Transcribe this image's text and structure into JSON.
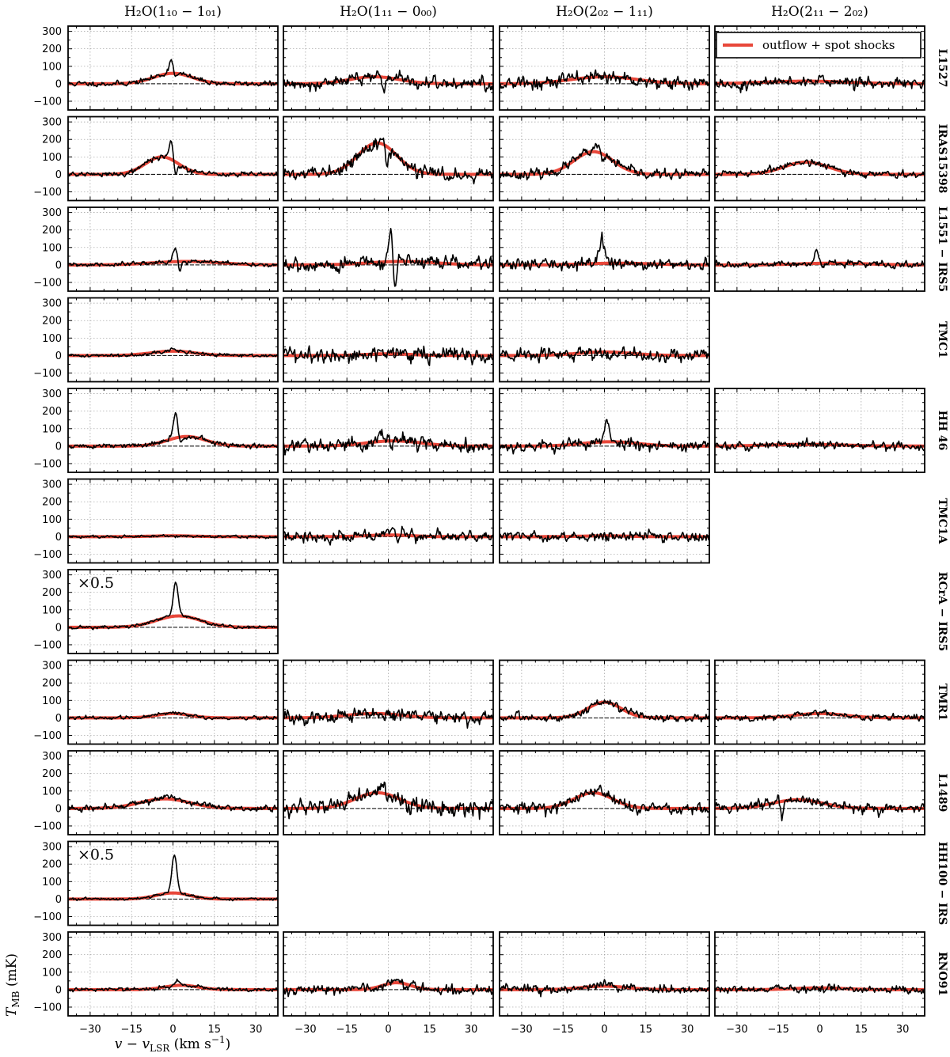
{
  "chart_data": {
    "type": "line",
    "panels_grid": {
      "rows": 11,
      "columns": 4
    },
    "columns": [
      {
        "title": "H₂O(1₁₀ − 1₀₁)"
      },
      {
        "title": "H₂O(1₁₁ − 0₀₀)"
      },
      {
        "title": "H₂O(2₀₂ − 1₁₁)"
      },
      {
        "title": "H₂O(2₁₁ − 2₀₂)"
      }
    ],
    "rows": [
      {
        "label": "L1527",
        "panels": [
          {
            "present": true,
            "fit_amp": 60,
            "fit_center": 0,
            "fit_width": 7,
            "peak_amp": 80,
            "peak_center": -0.5,
            "absorb_amp": -40,
            "noise": 12,
            "seed": 11
          },
          {
            "present": true,
            "fit_amp": 40,
            "fit_center": -5,
            "fit_width": 9,
            "peak_amp": 20,
            "peak_center": -3,
            "absorb_amp": -80,
            "noise": 28,
            "seed": 12
          },
          {
            "present": true,
            "fit_amp": 40,
            "fit_center": 0,
            "fit_width": 12,
            "peak_amp": 0,
            "peak_center": 0,
            "absorb_amp": 0,
            "noise": 32,
            "seed": 13
          },
          {
            "present": true,
            "fit_amp": 15,
            "fit_center": -5,
            "fit_width": 15,
            "peak_amp": 0,
            "peak_center": 0,
            "absorb_amp": 0,
            "noise": 26,
            "seed": 14
          }
        ]
      },
      {
        "label": "IRAS15398",
        "panels": [
          {
            "present": true,
            "fit_amp": 100,
            "fit_center": -4,
            "fit_width": 6,
            "peak_amp": 110,
            "peak_center": -0.5,
            "absorb_amp": -110,
            "noise": 12,
            "seed": 21
          },
          {
            "present": true,
            "fit_amp": 180,
            "fit_center": -4,
            "fit_width": 7,
            "peak_amp": 30,
            "peak_center": -2,
            "absorb_amp": -130,
            "noise": 28,
            "seed": 22
          },
          {
            "present": true,
            "fit_amp": 130,
            "fit_center": -4,
            "fit_width": 7,
            "peak_amp": 40,
            "peak_center": -2,
            "absorb_amp": -60,
            "noise": 22,
            "seed": 23
          },
          {
            "present": true,
            "fit_amp": 70,
            "fit_center": -5,
            "fit_width": 8,
            "peak_amp": 0,
            "peak_center": 0,
            "absorb_amp": 0,
            "noise": 16,
            "seed": 24
          }
        ]
      },
      {
        "label": "L1551 − IRS5",
        "panels": [
          {
            "present": true,
            "fit_amp": 20,
            "fit_center": 5,
            "fit_width": 12,
            "peak_amp": 90,
            "peak_center": 1,
            "absorb_amp": -80,
            "noise": 10,
            "seed": 31
          },
          {
            "present": true,
            "fit_amp": 20,
            "fit_center": 5,
            "fit_width": 12,
            "peak_amp": 170,
            "peak_center": 1,
            "absorb_amp": -190,
            "noise": 32,
            "seed": 32
          },
          {
            "present": true,
            "fit_amp": 10,
            "fit_center": 5,
            "fit_width": 12,
            "peak_amp": 140,
            "peak_center": -1,
            "absorb_amp": 0,
            "noise": 26,
            "seed": 33
          },
          {
            "present": true,
            "fit_amp": 10,
            "fit_center": 5,
            "fit_width": 12,
            "peak_amp": 70,
            "peak_center": -1,
            "absorb_amp": -30,
            "noise": 16,
            "seed": 34
          }
        ]
      },
      {
        "label": "TMC1",
        "panels": [
          {
            "present": true,
            "fit_amp": 25,
            "fit_center": 0,
            "fit_width": 8,
            "peak_amp": 10,
            "peak_center": 0,
            "absorb_amp": 0,
            "noise": 8,
            "seed": 41
          },
          {
            "present": true,
            "fit_amp": 10,
            "fit_center": 0,
            "fit_width": 8,
            "peak_amp": 0,
            "peak_center": 0,
            "absorb_amp": 0,
            "noise": 38,
            "seed": 42
          },
          {
            "present": true,
            "fit_amp": 20,
            "fit_center": 0,
            "fit_width": 10,
            "peak_amp": 0,
            "peak_center": 0,
            "absorb_amp": 0,
            "noise": 32,
            "seed": 43
          },
          {
            "present": false
          }
        ]
      },
      {
        "label": "HH 46",
        "panels": [
          {
            "present": true,
            "fit_amp": 55,
            "fit_center": 5,
            "fit_width": 7,
            "peak_amp": 140,
            "peak_center": 1,
            "absorb_amp": -50,
            "noise": 12,
            "seed": 51
          },
          {
            "present": true,
            "fit_amp": 30,
            "fit_center": 2,
            "fit_width": 10,
            "peak_amp": 40,
            "peak_center": -3,
            "absorb_amp": 0,
            "noise": 32,
            "seed": 52
          },
          {
            "present": true,
            "fit_amp": 25,
            "fit_center": 2,
            "fit_width": 10,
            "peak_amp": 100,
            "peak_center": 1,
            "absorb_amp": 0,
            "noise": 28,
            "seed": 53
          },
          {
            "present": true,
            "fit_amp": 10,
            "fit_center": -5,
            "fit_width": 14,
            "peak_amp": 0,
            "peak_center": 0,
            "absorb_amp": 0,
            "noise": 20,
            "seed": 54
          }
        ]
      },
      {
        "label": "TMC1A",
        "panels": [
          {
            "present": true,
            "fit_amp": 5,
            "fit_center": 0,
            "fit_width": 8,
            "peak_amp": 0,
            "peak_center": 0,
            "absorb_amp": 0,
            "noise": 7,
            "seed": 61
          },
          {
            "present": true,
            "fit_amp": 10,
            "fit_center": 0,
            "fit_width": 8,
            "peak_amp": 30,
            "peak_center": 2,
            "absorb_amp": -30,
            "noise": 24,
            "seed": 62
          },
          {
            "present": true,
            "fit_amp": 5,
            "fit_center": 0,
            "fit_width": 8,
            "peak_amp": 0,
            "peak_center": 0,
            "absorb_amp": 0,
            "noise": 22,
            "seed": 63
          },
          {
            "present": false
          }
        ]
      },
      {
        "label": "RCrA − IRS5",
        "panels": [
          {
            "present": true,
            "scale_label": "×0.5",
            "fit_amp": 65,
            "fit_center": 2,
            "fit_width": 8,
            "peak_amp": 190,
            "peak_center": 1,
            "absorb_amp": 0,
            "noise": 8,
            "seed": 71
          },
          {
            "present": false
          },
          {
            "present": false
          },
          {
            "present": false
          }
        ]
      },
      {
        "label": "TMR1",
        "panels": [
          {
            "present": true,
            "fit_amp": 25,
            "fit_center": 0,
            "fit_width": 6,
            "peak_amp": 10,
            "peak_center": 0,
            "absorb_amp": 0,
            "noise": 8,
            "seed": 81
          },
          {
            "present": true,
            "fit_amp": 25,
            "fit_center": -5,
            "fit_width": 10,
            "peak_amp": 0,
            "peak_center": 0,
            "absorb_amp": 0,
            "noise": 30,
            "seed": 82
          },
          {
            "present": true,
            "fit_amp": 90,
            "fit_center": 0,
            "fit_width": 6,
            "peak_amp": 0,
            "peak_center": 0,
            "absorb_amp": 0,
            "noise": 18,
            "seed": 83
          },
          {
            "present": true,
            "fit_amp": 25,
            "fit_center": 0,
            "fit_width": 9,
            "peak_amp": 0,
            "peak_center": 0,
            "absorb_amp": 0,
            "noise": 14,
            "seed": 84
          }
        ]
      },
      {
        "label": "L1489",
        "panels": [
          {
            "present": true,
            "fit_amp": 55,
            "fit_center": -3,
            "fit_width": 9,
            "peak_amp": 15,
            "peak_center": -3,
            "absorb_amp": 0,
            "noise": 14,
            "seed": 91
          },
          {
            "present": true,
            "fit_amp": 90,
            "fit_center": -4,
            "fit_width": 8,
            "peak_amp": 60,
            "peak_center": -2,
            "absorb_amp": -50,
            "noise": 38,
            "seed": 92
          },
          {
            "present": true,
            "fit_amp": 90,
            "fit_center": -4,
            "fit_width": 7,
            "peak_amp": 50,
            "peak_center": -2,
            "absorb_amp": 0,
            "noise": 28,
            "seed": 93
          },
          {
            "present": true,
            "fit_amp": 50,
            "fit_center": -8,
            "fit_width": 9,
            "peak_amp": 30,
            "peak_center": -15,
            "absorb_amp": -80,
            "noise": 22,
            "seed": 94
          }
        ]
      },
      {
        "label": "HH100 − IRS",
        "panels": [
          {
            "present": true,
            "scale_label": "×0.5",
            "fit_amp": 35,
            "fit_center": 0,
            "fit_width": 6,
            "peak_amp": 220,
            "peak_center": 0.5,
            "absorb_amp": 0,
            "noise": 6,
            "seed": 101
          },
          {
            "present": false
          },
          {
            "present": false
          },
          {
            "present": false
          }
        ]
      },
      {
        "label": "RNO91",
        "panels": [
          {
            "present": true,
            "fit_amp": 25,
            "fit_center": 3,
            "fit_width": 6,
            "peak_amp": 25,
            "peak_center": 2,
            "absorb_amp": 0,
            "noise": 9,
            "seed": 111
          },
          {
            "present": true,
            "fit_amp": 40,
            "fit_center": 3,
            "fit_width": 5,
            "peak_amp": 30,
            "peak_center": 3,
            "absorb_amp": 0,
            "noise": 24,
            "seed": 112
          },
          {
            "present": true,
            "fit_amp": 20,
            "fit_center": 0,
            "fit_width": 8,
            "peak_amp": 30,
            "peak_center": 0,
            "absorb_amp": 0,
            "noise": 20,
            "seed": 113
          },
          {
            "present": true,
            "fit_amp": 10,
            "fit_center": 0,
            "fit_width": 9,
            "peak_amp": 20,
            "peak_center": -15,
            "absorb_amp": 0,
            "noise": 18,
            "seed": 114
          }
        ]
      }
    ],
    "xlim": [
      -38,
      38
    ],
    "ylim": [
      -150,
      330
    ],
    "x_ticks": [
      -30,
      -15,
      0,
      15,
      30
    ],
    "x_tick_labels": [
      "−30",
      "−15",
      "0",
      "15",
      "30"
    ],
    "y_ticks": [
      -100,
      0,
      100,
      200,
      300
    ],
    "y_tick_labels": [
      "−100",
      "0",
      "100",
      "200",
      "300"
    ],
    "xlabel": "v − v_LSR (km s⁻¹)",
    "ylabel": "T_MB (mK)",
    "grid": true,
    "grid_style": "dotted",
    "legend": {
      "placement": "top-right",
      "entries": [
        {
          "label": "outflow + spot shocks",
          "color": "#e8473a"
        }
      ]
    },
    "colors": {
      "spectrum": "#000000",
      "fit": "#e8473a",
      "zero_line": "#000000"
    }
  }
}
